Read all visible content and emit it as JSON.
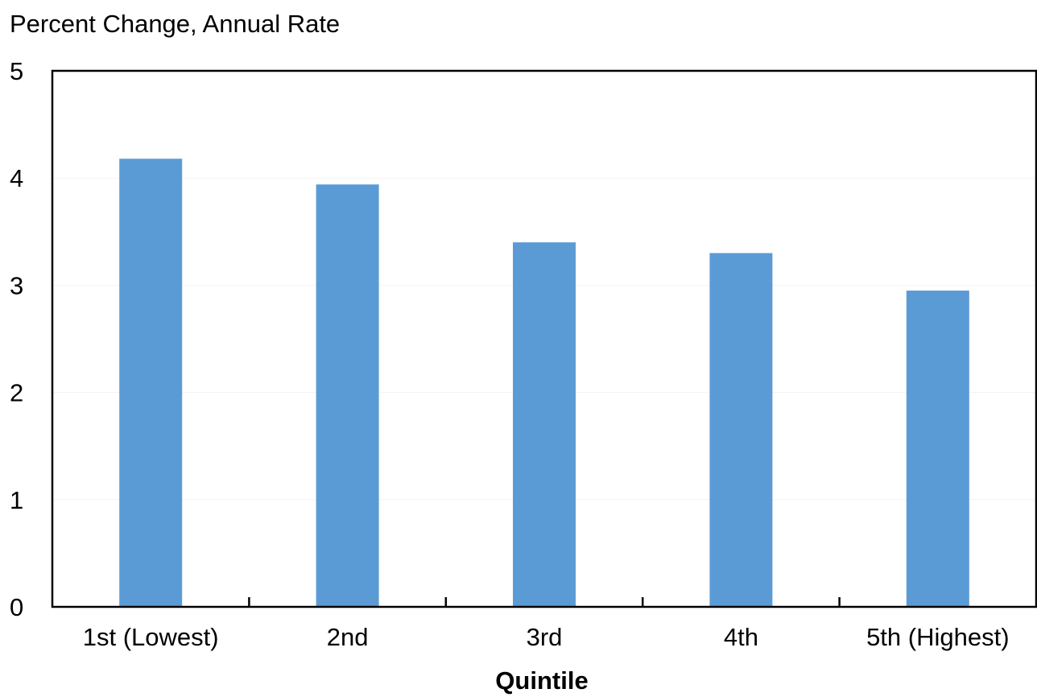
{
  "chart_data": {
    "type": "bar",
    "title": "",
    "ylabel": "Percent Change, Annual Rate",
    "xlabel": "Quintile",
    "categories": [
      "1st (Lowest)",
      "2nd",
      "3rd",
      "4th",
      "5th (Highest)"
    ],
    "values": [
      4.18,
      3.94,
      3.4,
      3.3,
      2.95
    ],
    "ylim": [
      0,
      5
    ],
    "yticks": [
      0,
      1,
      2,
      3,
      4,
      5
    ],
    "ytick_labels": [
      "0",
      "1",
      "2",
      "3",
      "4",
      "5"
    ],
    "grid": true,
    "legend": "none",
    "colors": {
      "bar": "#5B9BD5",
      "axis": "#000000",
      "grid": "#F2F2F2"
    }
  }
}
